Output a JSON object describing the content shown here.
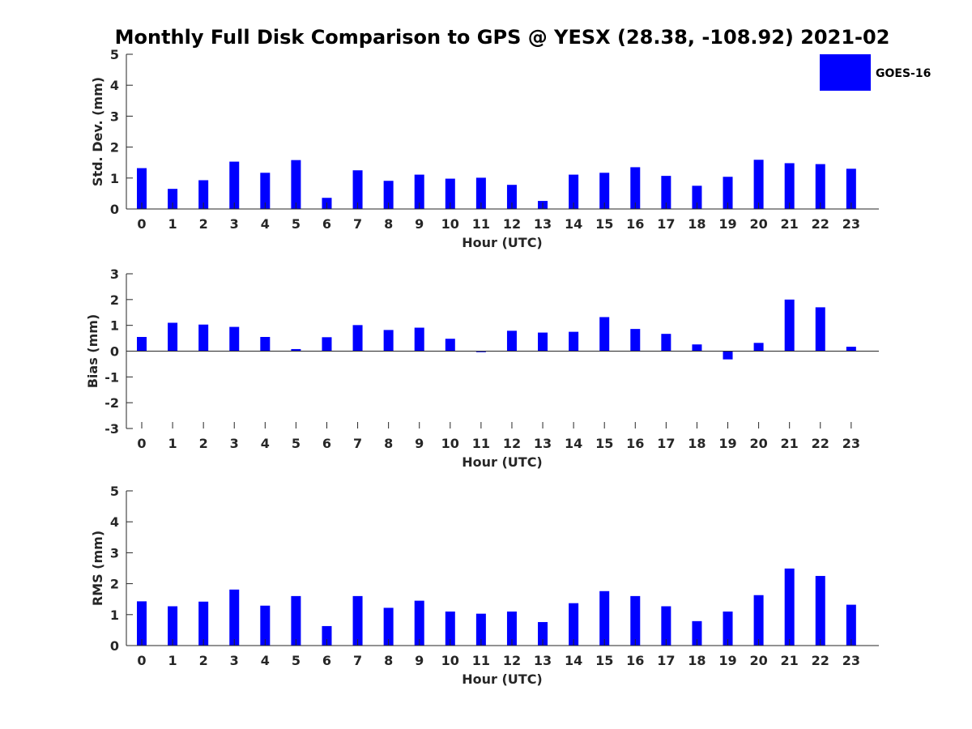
{
  "title": "Monthly Full Disk Comparison to GPS @ YESX (28.38, -108.92) 2021-02",
  "legend": {
    "label": "GOES-16",
    "position": "top-right"
  },
  "colors": {
    "bar": "#0000ff",
    "axis": "#262626",
    "background": "#ffffff"
  },
  "chart_data": [
    {
      "type": "bar",
      "title": "Monthly Full Disk Comparison to GPS @ YESX (28.38, -108.92) 2021-02",
      "xlabel": "Hour (UTC)",
      "ylabel": "Std. Dev. (mm)",
      "ylim": [
        0,
        5
      ],
      "yticks": [
        0,
        1,
        2,
        3,
        4,
        5
      ],
      "categories": [
        "0",
        "1",
        "2",
        "3",
        "4",
        "5",
        "6",
        "7",
        "8",
        "9",
        "10",
        "11",
        "12",
        "13",
        "14",
        "15",
        "16",
        "17",
        "18",
        "19",
        "20",
        "21",
        "22",
        "23"
      ],
      "series": [
        {
          "name": "GOES-16",
          "values": [
            1.32,
            0.65,
            0.93,
            1.53,
            1.17,
            1.58,
            0.36,
            1.25,
            0.91,
            1.11,
            0.98,
            1.01,
            0.78,
            0.26,
            1.11,
            1.17,
            1.35,
            1.07,
            0.75,
            1.04,
            1.59,
            1.48,
            1.45,
            1.3
          ]
        }
      ]
    },
    {
      "type": "bar",
      "xlabel": "Hour (UTC)",
      "ylabel": "Bias (mm)",
      "ylim": [
        -3,
        3
      ],
      "yticks": [
        -3,
        -2,
        -1,
        0,
        1,
        2,
        3
      ],
      "categories": [
        "0",
        "1",
        "2",
        "3",
        "4",
        "5",
        "6",
        "7",
        "8",
        "9",
        "10",
        "11",
        "12",
        "13",
        "14",
        "15",
        "16",
        "17",
        "18",
        "19",
        "20",
        "21",
        "22",
        "23"
      ],
      "series": [
        {
          "name": "GOES-16",
          "values": [
            0.55,
            1.1,
            1.03,
            0.94,
            0.55,
            0.08,
            0.54,
            1.01,
            0.82,
            0.91,
            0.48,
            -0.04,
            0.79,
            0.72,
            0.75,
            1.32,
            0.86,
            0.67,
            0.26,
            -0.32,
            0.32,
            2.0,
            1.7,
            0.17
          ]
        }
      ]
    },
    {
      "type": "bar",
      "xlabel": "Hour (UTC)",
      "ylabel": "RMS (mm)",
      "ylim": [
        0,
        5
      ],
      "yticks": [
        0,
        1,
        2,
        3,
        4,
        5
      ],
      "categories": [
        "0",
        "1",
        "2",
        "3",
        "4",
        "5",
        "6",
        "7",
        "8",
        "9",
        "10",
        "11",
        "12",
        "13",
        "14",
        "15",
        "16",
        "17",
        "18",
        "19",
        "20",
        "21",
        "22",
        "23"
      ],
      "series": [
        {
          "name": "GOES-16",
          "values": [
            1.43,
            1.27,
            1.42,
            1.81,
            1.29,
            1.6,
            0.63,
            1.6,
            1.22,
            1.45,
            1.1,
            1.03,
            1.1,
            0.76,
            1.37,
            1.76,
            1.6,
            1.27,
            0.79,
            1.1,
            1.63,
            2.49,
            2.25,
            1.32
          ]
        }
      ]
    }
  ]
}
